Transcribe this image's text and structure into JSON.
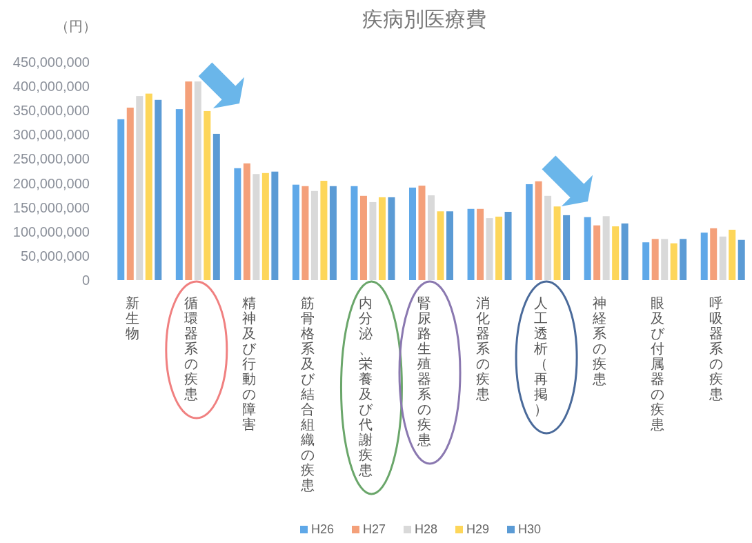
{
  "chart_data": {
    "type": "bar",
    "title": "疾病別医療費",
    "ylabel": "（円）",
    "categories": [
      "新生物",
      "循環器系の疾患",
      "精神及び行動の障害",
      "筋骨格系及び結合組織の疾患",
      "内分泌、栄養及び代謝疾患",
      "腎尿路生殖器系の疾患",
      "消化器系の疾患",
      "人工透析（再掲）",
      "神経系の疾患",
      "眼及び付属器の疾患",
      "呼吸器系の疾患"
    ],
    "series": [
      {
        "name": "H26",
        "color": "#5fa8e8",
        "values": [
          332000000,
          353000000,
          231000000,
          197000000,
          194000000,
          191000000,
          147000000,
          198000000,
          130000000,
          78000000,
          98000000
        ]
      },
      {
        "name": "H27",
        "color": "#f4a07a",
        "values": [
          356000000,
          410000000,
          241000000,
          194000000,
          174000000,
          195000000,
          147000000,
          204000000,
          113000000,
          85000000,
          107000000
        ]
      },
      {
        "name": "H28",
        "color": "#d9d9d9",
        "values": [
          380000000,
          410000000,
          219000000,
          184000000,
          161000000,
          175000000,
          128000000,
          174000000,
          132000000,
          85000000,
          90000000
        ]
      },
      {
        "name": "H29",
        "color": "#fdd65a",
        "values": [
          385000000,
          349000000,
          221000000,
          205000000,
          171000000,
          142000000,
          131000000,
          152000000,
          111000000,
          76000000,
          104000000
        ]
      },
      {
        "name": "H30",
        "color": "#5b9bd5",
        "values": [
          372000000,
          302000000,
          224000000,
          194000000,
          171000000,
          142000000,
          141000000,
          134000000,
          117000000,
          85000000,
          83000000
        ]
      }
    ],
    "ylim": [
      0,
      450000000
    ],
    "yticks": [
      {
        "value": 0,
        "label": "0"
      },
      {
        "value": 50000000,
        "label": "50,000,000"
      },
      {
        "value": 100000000,
        "label": "100,000,000"
      },
      {
        "value": 150000000,
        "label": "150,000,000"
      },
      {
        "value": 200000000,
        "label": "200,000,000"
      },
      {
        "value": 250000000,
        "label": "250,000,000"
      },
      {
        "value": 300000000,
        "label": "300,000,000"
      },
      {
        "value": 350000000,
        "label": "350,000,000"
      },
      {
        "value": 400000000,
        "label": "400,000,000"
      },
      {
        "value": 450000000,
        "label": "450,000,000"
      }
    ],
    "legend": "bottom"
  }
}
